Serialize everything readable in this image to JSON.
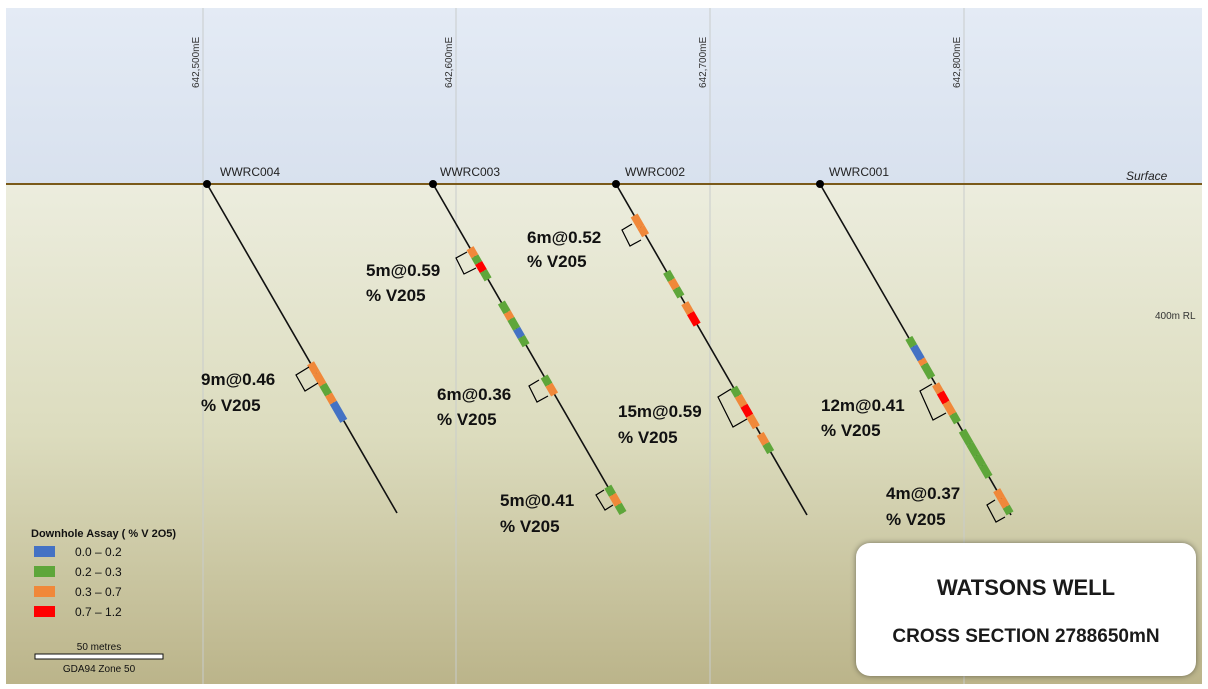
{
  "eastings": [
    "642,500mE",
    "642,600mE",
    "642,700mE",
    "642,800mE"
  ],
  "surface_label": "Surface",
  "rl_label": "400m RL",
  "holes": [
    {
      "name": "WWRC004"
    },
    {
      "name": "WWRC003"
    },
    {
      "name": "WWRC002"
    },
    {
      "name": "WWRC001"
    }
  ],
  "intercepts": [
    {
      "line1": "9m@0.46",
      "line2": "% V205"
    },
    {
      "line1": "5m@0.59",
      "line2": "% V205"
    },
    {
      "line1": "6m@0.36",
      "line2": "% V205"
    },
    {
      "line1": "5m@0.41",
      "line2": "% V205"
    },
    {
      "line1": "6m@0.52",
      "line2": "% V205"
    },
    {
      "line1": "15m@0.59",
      "line2": "% V205"
    },
    {
      "line1": "12m@0.41",
      "line2": "% V205"
    },
    {
      "line1": "4m@0.37",
      "line2": "% V205"
    }
  ],
  "legend": {
    "title": "Downhole Assay ( % V  2O5)",
    "items": [
      {
        "label": "0.0 – 0.2",
        "color": "#4472c4"
      },
      {
        "label": "0.2 – 0.3",
        "color": "#5ea63a"
      },
      {
        "label": "0.3 – 0.7",
        "color": "#f0883a"
      },
      {
        "label": "0.7 – 1.2",
        "color": "#ff0000"
      }
    ]
  },
  "scale_bar": {
    "label": "50 metres",
    "projection": "GDA94 Zone 50"
  },
  "title_box": {
    "title": "WATSONS WELL",
    "subtitle": "CROSS SECTION 2788650mN"
  }
}
